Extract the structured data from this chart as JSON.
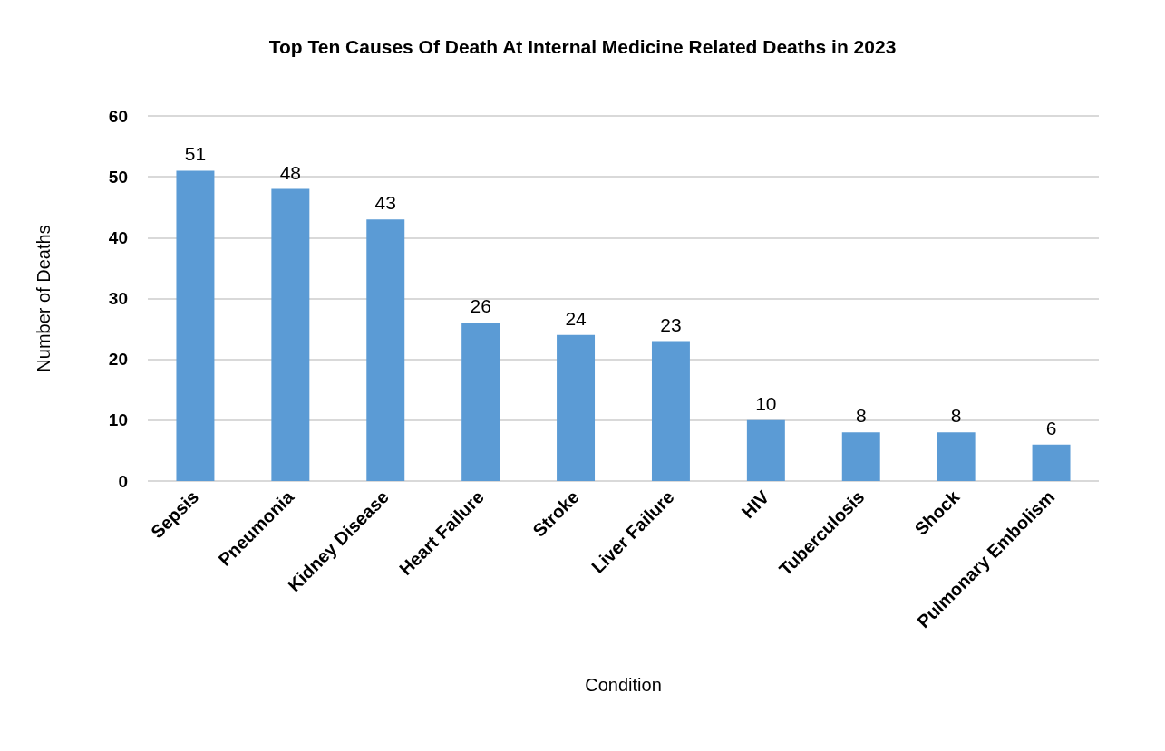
{
  "chart_data": {
    "type": "bar",
    "title": "Top Ten Causes Of Death At Internal Medicine Related Deaths in 2023",
    "xlabel": "Condition",
    "ylabel": "Number of Deaths",
    "categories": [
      "Sepsis",
      "Pneumonia",
      "Kidney Disease",
      "Heart Failure",
      "Stroke",
      "Liver Failure",
      "HIV",
      "Tuberculosis",
      "Shock",
      "Pulmonary Embolism"
    ],
    "values": [
      51,
      48,
      43,
      26,
      24,
      23,
      10,
      8,
      8,
      6
    ],
    "color": "#5b9bd5",
    "ylim": [
      0,
      60
    ],
    "yticks": [
      0,
      10,
      20,
      30,
      40,
      50,
      60
    ],
    "grid": "y",
    "data_labels": true
  }
}
